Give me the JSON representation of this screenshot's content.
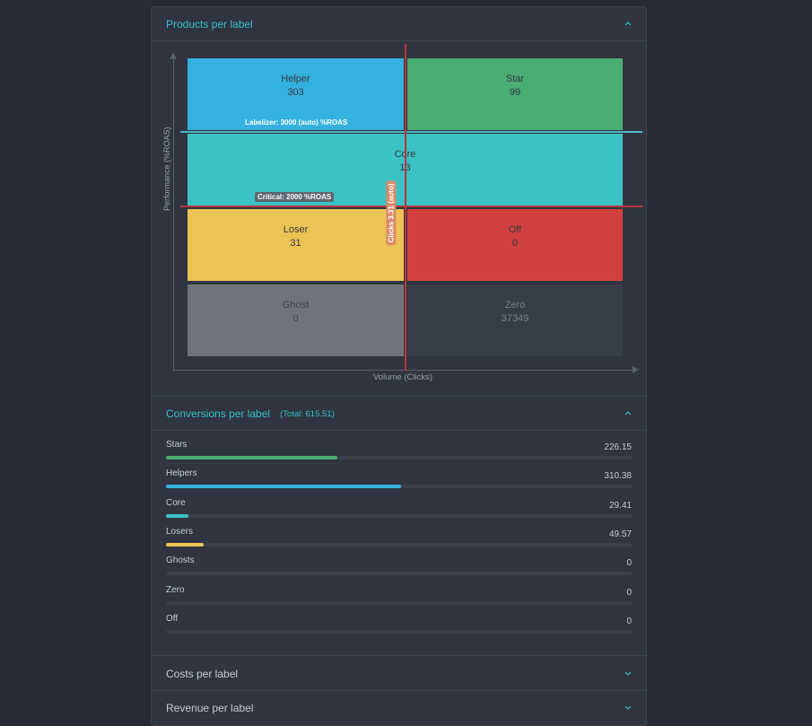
{
  "sections": {
    "products": {
      "title": "Products per label"
    },
    "conversions": {
      "title": "Conversions per label",
      "total": "(Total: 615.51)"
    },
    "costs": {
      "title": "Costs per label"
    },
    "revenue": {
      "title": "Revenue per label"
    }
  },
  "chart_data": {
    "type": "quadrant",
    "xlabel": "Volume (Clicks)",
    "ylabel": "Performance (%ROAS)",
    "cells": [
      {
        "name": "Helper",
        "value": "303",
        "color": "#35b1e0"
      },
      {
        "name": "Star",
        "value": "99",
        "color": "#4aad74"
      },
      {
        "name": "Core",
        "value": "13",
        "color": "#3cc2c4"
      },
      {
        "name": "Loser",
        "value": "31",
        "color": "#ecc456"
      },
      {
        "name": "Off",
        "value": "0",
        "color": "#d1403f"
      },
      {
        "name": "Ghost",
        "value": "0",
        "color": "#6e737c"
      },
      {
        "name": "Zero",
        "value": "37349",
        "color": "#373d47"
      }
    ],
    "annotations": {
      "labelizer": "Labelizer: 3000 (auto) %ROAS",
      "critical": "Critical: 2000 %ROAS",
      "clicks": "Clicks 3.31 (auto)"
    }
  },
  "conversions": [
    {
      "label": "Stars",
      "value": "226.15",
      "fraction": 0.368,
      "color": "#4aad74"
    },
    {
      "label": "Helpers",
      "value": "310.38",
      "fraction": 0.504,
      "color": "#35b1e0"
    },
    {
      "label": "Core",
      "value": "29.41",
      "fraction": 0.048,
      "color": "#3cc2c4"
    },
    {
      "label": "Losers",
      "value": "49.57",
      "fraction": 0.081,
      "color": "#ecc456"
    },
    {
      "label": "Ghosts",
      "value": "0",
      "fraction": 0,
      "color": "#6e737c"
    },
    {
      "label": "Zero",
      "value": "0",
      "fraction": 0,
      "color": "#373d47"
    },
    {
      "label": "Off",
      "value": "0",
      "fraction": 0,
      "color": "#d1403f"
    }
  ]
}
